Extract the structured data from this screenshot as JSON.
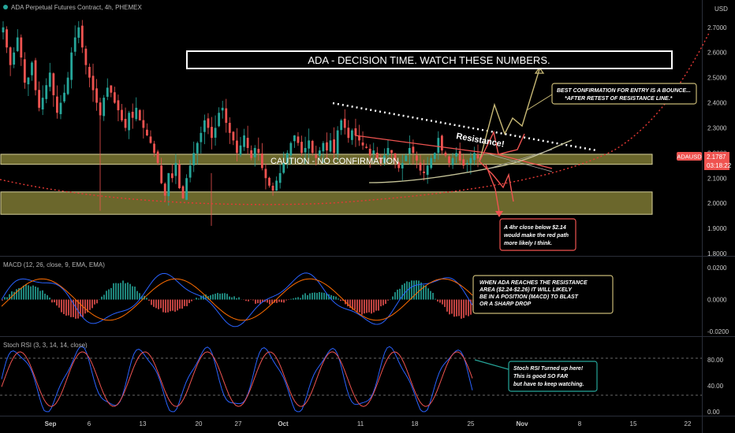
{
  "header": {
    "symbol_line": "ADA Perpetual Futures Contract, 4h, PHEMEX",
    "currency": "USD"
  },
  "price_badge": {
    "symbol": "ADAUSD",
    "price": "2.1787",
    "countdown": "03:18:22"
  },
  "indicator_labels": {
    "macd": "MACD (12, 26, close, 9, EMA, EMA)",
    "stoch": "Stoch RSI (3, 3, 14, 14, close)"
  },
  "annotations": {
    "title": "ADA - DECISION TIME. WATCH THESE NUMBERS.",
    "resistance": "Resistance!",
    "caution": "CAUTION - NO CONFIRMATION",
    "best_confirmation": [
      "BEST CONFIRMATION FOR ENTRY IS A BOUNCE...",
      "*AFTER RETEST OF RESISTANCE LINE.*"
    ],
    "close_below": [
      "A 4hr close below $2.14",
      "would make the red path",
      "more likely I think."
    ],
    "macd_note": [
      "WHEN ADA REACHES THE RESISTANCE",
      "AREA ($2.24-$2.26) IT WILL LIKELY",
      "BE IN A POSITION (MACD) TO BLAST",
      "OR A SHARP DROP"
    ],
    "stoch_note": [
      "Stoch RSI Turned up here!",
      "This is good SO FAR",
      "but have to keep watching."
    ]
  },
  "colors": {
    "up": "#26a69a",
    "down": "#ef5350",
    "zone_fill": "#8f8a3b",
    "zone_border": "#d8d29a",
    "macd_line": "#2962ff",
    "signal_line": "#ff6d00",
    "stoch_k": "#2962ff",
    "stoch_d": "#ef5350"
  },
  "chart_data": {
    "type": "candlestick",
    "price_axis": {
      "ticks": [
        "2.7000",
        "2.6000",
        "2.5000",
        "2.4000",
        "2.3000",
        "2.2000",
        "2.1000",
        "2.0000",
        "1.9000",
        "1.8000"
      ],
      "range": [
        1.8,
        2.74
      ]
    },
    "macd_axis": {
      "ticks": [
        "0.0200",
        "0.0000",
        "-0.0200"
      ],
      "range": [
        -0.022,
        0.024
      ]
    },
    "stoch_axis": {
      "ticks": [
        "80.00",
        "40.00",
        "0.00"
      ],
      "range": [
        -5,
        110
      ]
    },
    "time_axis": {
      "ticks": [
        "Sep",
        "6",
        "13",
        "20",
        "27",
        "Oct",
        "11",
        "18",
        "25",
        "Nov",
        "8",
        "15",
        "22"
      ]
    },
    "current_price": 2.1787,
    "zones": [
      {
        "name": "upper support zone",
        "from": 2.155,
        "to": 2.195
      },
      {
        "name": "lower support zone",
        "from": 1.956,
        "to": 2.045
      }
    ],
    "resistance_line": {
      "from": {
        "date": "Oct 8",
        "price": 2.375
      },
      "to": {
        "date": "Nov 7",
        "price": 2.2
      }
    },
    "candles_close": [
      2.7,
      2.62,
      2.55,
      2.6,
      2.66,
      2.58,
      2.48,
      2.5,
      2.56,
      2.45,
      2.38,
      2.42,
      2.47,
      2.52,
      2.43,
      2.36,
      2.4,
      2.44,
      2.5,
      2.6,
      2.66,
      2.7,
      2.62,
      2.55,
      2.5,
      2.45,
      2.4,
      2.35,
      2.42,
      2.46,
      2.44,
      2.4,
      2.37,
      2.33,
      2.3,
      2.36,
      2.34,
      2.38,
      2.33,
      2.3,
      2.27,
      2.24,
      2.2,
      2.16,
      2.08,
      2.03,
      2.12,
      2.1,
      2.16,
      2.06,
      2.02,
      2.1,
      2.15,
      2.2,
      2.24,
      2.28,
      2.33,
      2.3,
      2.26,
      2.3,
      2.36,
      2.38,
      2.32,
      2.28,
      2.25,
      2.2,
      2.23,
      2.27,
      2.22,
      2.18,
      2.22,
      2.2,
      2.14,
      2.1,
      2.07,
      2.05,
      2.09,
      2.12,
      2.16,
      2.2,
      2.24,
      2.27,
      2.24,
      2.2,
      2.22,
      2.25,
      2.2,
      2.18,
      2.21,
      2.24,
      2.21,
      2.25,
      2.2,
      2.29,
      2.33,
      2.3,
      2.26,
      2.29,
      2.27,
      2.25,
      2.23,
      2.22,
      2.19,
      2.21,
      2.18,
      2.16,
      2.19,
      2.22,
      2.2,
      2.17,
      2.14,
      2.16,
      2.19,
      2.22,
      2.2,
      2.17,
      2.13,
      2.12,
      2.15,
      2.18,
      2.2,
      2.26,
      2.21,
      2.19,
      2.16,
      2.18,
      2.2,
      2.17,
      2.15,
      2.16,
      2.18,
      2.2,
      2.178
    ]
  }
}
